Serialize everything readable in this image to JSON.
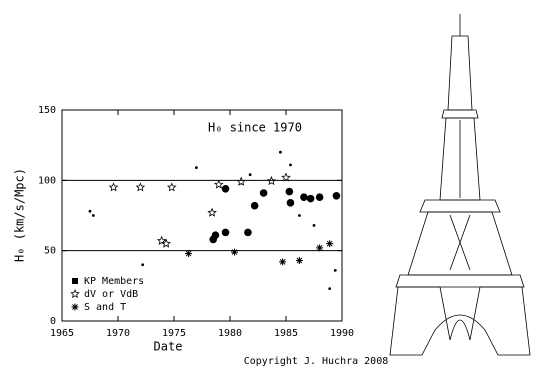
{
  "chart_data": {
    "type": "scatter",
    "title": "H₀ since 1970",
    "x_label": "Date",
    "y_label": "H₀ (km/s/Mpc)",
    "footer": "Copyright  J. Huchra 2008",
    "xlim": [
      1965,
      1990
    ],
    "xticks": [
      1965,
      1970,
      1975,
      1980,
      1985,
      1990
    ],
    "ylim": [
      0,
      150
    ],
    "yticks": [
      0,
      50,
      100,
      150
    ],
    "reference_lines": [
      100,
      50
    ],
    "legend": "lower left",
    "series": [
      {
        "name": "KP Members",
        "marker": "circle",
        "color": "#000000",
        "x": [
          1978.5,
          1978.7,
          1979.6,
          1979.6,
          1981.6,
          1982.2,
          1983,
          1985.3,
          1985.4,
          1986.6,
          1987.2,
          1988,
          1989.5
        ],
        "values": [
          58,
          61,
          94,
          63,
          63,
          82,
          91,
          92,
          84,
          88,
          87,
          88,
          89
        ]
      },
      {
        "name": "dV or VdB",
        "marker": "star",
        "color": "#000000",
        "x": [
          1969.6,
          1972,
          1974.8,
          1973.9,
          1974.3,
          1979,
          1981,
          1983.7,
          1985,
          1978.4
        ],
        "values": [
          95,
          95,
          95,
          57,
          55,
          97,
          99,
          99.5,
          102,
          77
        ]
      },
      {
        "name": "S and T",
        "marker": "asterisk",
        "color": "#000000",
        "x": [
          1976.3,
          1980.4,
          1984.7,
          1986.2,
          1988,
          1988.9
        ],
        "values": [
          48,
          49,
          42,
          43,
          52,
          55
        ]
      },
      {
        "marker": "dot",
        "color": "#000000",
        "x": [
          1967.5,
          1967.8,
          1972.2,
          1977,
          1984.5,
          1985.4,
          1981.8,
          1986.2,
          1987.5,
          1989.4,
          1988.9
        ],
        "values": [
          78,
          75,
          40,
          109,
          120,
          111,
          104,
          75,
          68,
          36,
          23
        ]
      }
    ]
  }
}
